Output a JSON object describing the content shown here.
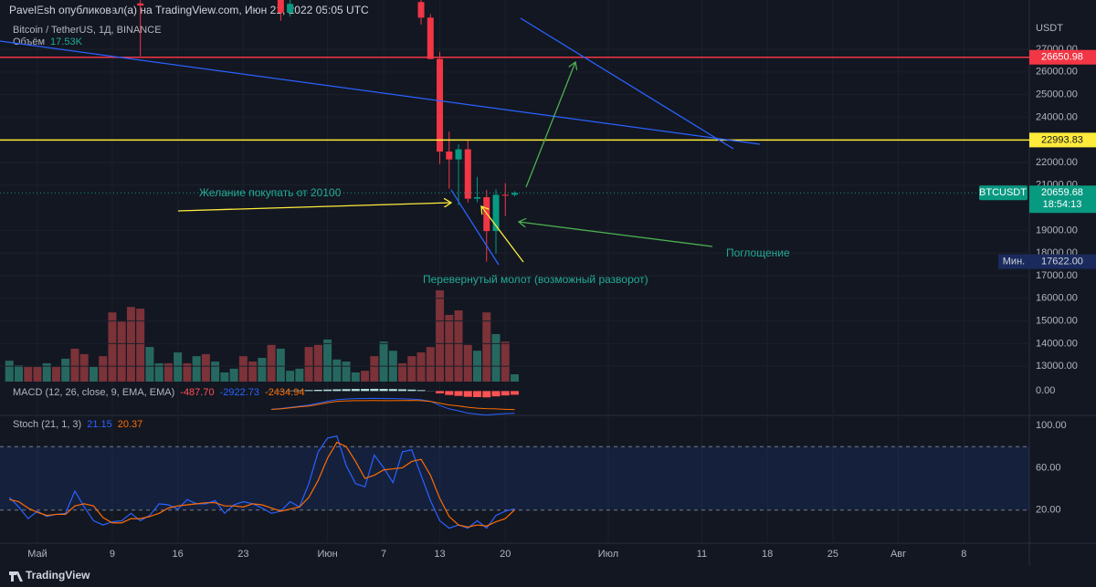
{
  "header": {
    "text": "PavelEsh опубликовал(а) на TradingView.com, Июн 21, 2022 05:05 UTC"
  },
  "footer": {
    "brand": "TradingView"
  },
  "chart_data": [
    {
      "type": "candlestick",
      "title": "Bitcoin / TetherUS, 1Д, BINANCE",
      "symbol": "BTCUSDT",
      "unit": "USDT",
      "countdown": "18:54:13",
      "x": [
        "2022-05-12",
        "2022-05-27",
        "2022-05-28",
        "2022-06-11",
        "2022-06-12",
        "2022-06-13",
        "2022-06-14",
        "2022-06-15",
        "2022-06-16",
        "2022-06-17",
        "2022-06-18",
        "2022-06-19",
        "2022-06-20",
        "2022-06-21"
      ],
      "open": [
        29030,
        29190,
        28620,
        29090,
        28400,
        26574,
        22485,
        22136,
        22584,
        20401,
        20468,
        18971,
        20574,
        20573
      ],
      "high": [
        30032,
        29380,
        29250,
        29420,
        28550,
        26895,
        23363,
        22800,
        22973,
        21365,
        20792,
        20815,
        21090,
        20730
      ],
      "low": [
        26700,
        28260,
        28450,
        28100,
        26560,
        21925,
        20846,
        20111,
        20232,
        20246,
        17622,
        17960,
        19637,
        20500
      ],
      "close": [
        28936,
        28620,
        29010,
        28400,
        26574,
        22485,
        22136,
        22584,
        20401,
        20468,
        18971,
        20574,
        20573,
        20659.68
      ],
      "up_color": "#089981",
      "down_color": "#f23645",
      "xlim": [
        "2022-04-27",
        "2022-08-15"
      ],
      "xticks": [
        {
          "value": "2022-05-01",
          "label": "Май"
        },
        {
          "value": "2022-05-09",
          "label": "9"
        },
        {
          "value": "2022-05-16",
          "label": "16"
        },
        {
          "value": "2022-05-23",
          "label": "23"
        },
        {
          "value": "2022-06-01",
          "label": "Июн"
        },
        {
          "value": "2022-06-07",
          "label": "7"
        },
        {
          "value": "2022-06-13",
          "label": "13"
        },
        {
          "value": "2022-06-20",
          "label": "20"
        },
        {
          "value": "2022-07-01",
          "label": "Июл"
        },
        {
          "value": "2022-07-11",
          "label": "11"
        },
        {
          "value": "2022-07-18",
          "label": "18"
        },
        {
          "value": "2022-07-25",
          "label": "25"
        },
        {
          "value": "2022-08-01",
          "label": "Авг"
        },
        {
          "value": "2022-08-08",
          "label": "8"
        }
      ],
      "ylim": [
        12240,
        29180
      ],
      "yticks": [
        {
          "value": 13000,
          "label": "13000.00"
        },
        {
          "value": 14000,
          "label": "14000.00"
        },
        {
          "value": 15000,
          "label": "15000.00"
        },
        {
          "value": 16000,
          "label": "16000.00"
        },
        {
          "value": 17000,
          "label": "17000.00"
        },
        {
          "value": 18000,
          "label": "18000.00"
        },
        {
          "value": 19000,
          "label": "19000.00"
        },
        {
          "value": 21000,
          "label": "21000.00"
        },
        {
          "value": 22000,
          "label": "22000.00"
        },
        {
          "value": 23000,
          "label": "23000.00"
        },
        {
          "value": 24000,
          "label": "24000.00"
        },
        {
          "value": 25000,
          "label": "25000.00"
        },
        {
          "value": 26000,
          "label": "26000.00"
        },
        {
          "value": 27000,
          "label": "27000.00"
        }
      ],
      "grid": true,
      "lines": [
        {
          "value": 26650.98,
          "color": "#f23645"
        },
        {
          "value": 22993.83,
          "color": "#ffeb3b"
        }
      ],
      "min_marker": {
        "name": "Мин.",
        "value": 17622,
        "label": "17622.00"
      },
      "annotations": [
        {
          "text": "Желание покупать от 20100"
        },
        {
          "text": "Перевернутый молот (возможный разворот)"
        },
        {
          "text": "Поглощение"
        }
      ]
    },
    {
      "type": "bar",
      "name": "Объём",
      "x": [
        "2022-04-28",
        "2022-04-29",
        "2022-04-30",
        "2022-05-01",
        "2022-05-02",
        "2022-05-03",
        "2022-05-04",
        "2022-05-05",
        "2022-05-06",
        "2022-05-07",
        "2022-05-08",
        "2022-05-09",
        "2022-05-10",
        "2022-05-11",
        "2022-05-12",
        "2022-05-13",
        "2022-05-14",
        "2022-05-15",
        "2022-05-16",
        "2022-05-17",
        "2022-05-18",
        "2022-05-19",
        "2022-05-20",
        "2022-05-21",
        "2022-05-22",
        "2022-05-23",
        "2022-05-24",
        "2022-05-25",
        "2022-05-26",
        "2022-05-27",
        "2022-05-28",
        "2022-05-29",
        "2022-05-30",
        "2022-05-31",
        "2022-06-01",
        "2022-06-02",
        "2022-06-03",
        "2022-06-04",
        "2022-06-05",
        "2022-06-06",
        "2022-06-07",
        "2022-06-08",
        "2022-06-09",
        "2022-06-10",
        "2022-06-11",
        "2022-06-12",
        "2022-06-13",
        "2022-06-14",
        "2022-06-15",
        "2022-06-16",
        "2022-06-17",
        "2022-06-18",
        "2022-06-19",
        "2022-06-20",
        "2022-06-21"
      ],
      "values": [
        50,
        39,
        35,
        35,
        44,
        35,
        55,
        79,
        66,
        35,
        61,
        166,
        144,
        179,
        175,
        83,
        44,
        44,
        70,
        44,
        61,
        66,
        48,
        22,
        31,
        61,
        48,
        57,
        88,
        79,
        26,
        31,
        83,
        88,
        101,
        53,
        48,
        22,
        26,
        61,
        96,
        74,
        44,
        61,
        70,
        83,
        219,
        160,
        171,
        88,
        74,
        166,
        114,
        96,
        17.53
      ],
      "value_labels": [
        null,
        null,
        null,
        null,
        null,
        null,
        null,
        null,
        null,
        null,
        null,
        null,
        null,
        null,
        null,
        null,
        null,
        null,
        null,
        null,
        null,
        null,
        null,
        null,
        null,
        null,
        null,
        null,
        null,
        null,
        null,
        null,
        null,
        null,
        null,
        null,
        null,
        null,
        null,
        null,
        null,
        null,
        null,
        null,
        null,
        null,
        null,
        null,
        null,
        null,
        null,
        null,
        null,
        null,
        "17.53K"
      ],
      "colors": [
        "#26685f",
        "#26685f",
        "#7b3238",
        "#7b3238",
        "#26685f",
        "#7b3238",
        "#26685f",
        "#7b3238",
        "#7b3238",
        "#26685f",
        "#7b3238",
        "#7b3238",
        "#7b3238",
        "#7b3238",
        "#7b3238",
        "#26685f",
        "#26685f",
        "#7b3238",
        "#26685f",
        "#7b3238",
        "#26685f",
        "#7b3238",
        "#26685f",
        "#26685f",
        "#26685f",
        "#7b3238",
        "#7b3238",
        "#26685f",
        "#7b3238",
        "#26685f",
        "#26685f",
        "#26685f",
        "#7b3238",
        "#7b3238",
        "#26685f",
        "#26685f",
        "#26685f",
        "#26685f",
        "#7b3238",
        "#7b3238",
        "#26685f",
        "#26685f",
        "#7b3238",
        "#7b3238",
        "#7b3238",
        "#7b3238",
        "#7b3238",
        "#7b3238",
        "#7b3238",
        "#7b3238",
        "#26685f",
        "#7b3238",
        "#26685f",
        "#7b3238",
        "#26685f"
      ],
      "name_color": "#22ab94",
      "ylim": [
        0,
        230
      ]
    },
    {
      "type": "macd",
      "title": "MACD (12, 26, close, 9, EMA, EMA)",
      "x": [
        "2022-05-26",
        "2022-05-27",
        "2022-05-28",
        "2022-05-29",
        "2022-05-30",
        "2022-05-31",
        "2022-06-01",
        "2022-06-02",
        "2022-06-03",
        "2022-06-04",
        "2022-06-05",
        "2022-06-06",
        "2022-06-07",
        "2022-06-08",
        "2022-06-09",
        "2022-06-10",
        "2022-06-11",
        "2022-06-12",
        "2022-06-13",
        "2022-06-14",
        "2022-06-15",
        "2022-06-16",
        "2022-06-17",
        "2022-06-18",
        "2022-06-19",
        "2022-06-20",
        "2022-06-21"
      ],
      "histogram": [
        20,
        40,
        60,
        80,
        120,
        160,
        190,
        220,
        250,
        270,
        280,
        290,
        280,
        260,
        230,
        190,
        120,
        20,
        -300,
        -520,
        -640,
        -760,
        -800,
        -830,
        -700,
        -580,
        -487.7
      ],
      "histogram_labels": [
        null,
        null,
        null,
        null,
        null,
        null,
        null,
        null,
        null,
        null,
        null,
        null,
        null,
        null,
        null,
        null,
        null,
        null,
        null,
        null,
        null,
        null,
        null,
        null,
        null,
        null,
        "-487.70"
      ],
      "up_color": "#b2dfdb",
      "down_color": "#ff5252",
      "series": [
        {
          "color": "#2962ff",
          "values": [
            -2400,
            -2300,
            -2150,
            -2000,
            -1850,
            -1600,
            -1350,
            -1150,
            -1050,
            -1000,
            -980,
            -960,
            -980,
            -1000,
            -1020,
            -1050,
            -1150,
            -1350,
            -1900,
            -2350,
            -2600,
            -2900,
            -3050,
            -3150,
            -3050,
            -2980,
            -2922.73
          ]
        },
        {
          "color": "#ff6d00",
          "values": [
            -2420,
            -2340,
            -2210,
            -2080,
            -1970,
            -1760,
            -1540,
            -1370,
            -1300,
            -1270,
            -1260,
            -1250,
            -1260,
            -1260,
            -1250,
            -1240,
            -1270,
            -1370,
            -1600,
            -1830,
            -1960,
            -2140,
            -2250,
            -2320,
            -2350,
            -2400,
            -2434.94
          ]
        }
      ],
      "ylim": [
        -3200,
        1000
      ],
      "yticks": [
        {
          "value": 0,
          "label": "0.00"
        }
      ]
    },
    {
      "type": "line",
      "title": "Stoch (21, 1, 3)",
      "x": [
        "2022-04-28",
        "2022-04-29",
        "2022-04-30",
        "2022-05-01",
        "2022-05-02",
        "2022-05-03",
        "2022-05-04",
        "2022-05-05",
        "2022-05-06",
        "2022-05-07",
        "2022-05-08",
        "2022-05-09",
        "2022-05-10",
        "2022-05-11",
        "2022-05-12",
        "2022-05-13",
        "2022-05-14",
        "2022-05-15",
        "2022-05-16",
        "2022-05-17",
        "2022-05-18",
        "2022-05-19",
        "2022-05-20",
        "2022-05-21",
        "2022-05-22",
        "2022-05-23",
        "2022-05-24",
        "2022-05-25",
        "2022-05-26",
        "2022-05-27",
        "2022-05-28",
        "2022-05-29",
        "2022-05-30",
        "2022-05-31",
        "2022-06-01",
        "2022-06-02",
        "2022-06-03",
        "2022-06-04",
        "2022-06-05",
        "2022-06-06",
        "2022-06-07",
        "2022-06-08",
        "2022-06-09",
        "2022-06-10",
        "2022-06-11",
        "2022-06-12",
        "2022-06-13",
        "2022-06-14",
        "2022-06-15",
        "2022-06-16",
        "2022-06-17",
        "2022-06-18",
        "2022-06-19",
        "2022-06-20",
        "2022-06-21"
      ],
      "series": [
        {
          "color": "#2962ff",
          "values": [
            32,
            23,
            12,
            19,
            14,
            16,
            17,
            38,
            23,
            10,
            6,
            9,
            10,
            17,
            10,
            15,
            26,
            25,
            21,
            30,
            26,
            26,
            29,
            17,
            25,
            28,
            26,
            22,
            17,
            19,
            28,
            23,
            45,
            75,
            88,
            90,
            62,
            45,
            42,
            72,
            60,
            46,
            75,
            77,
            53,
            29,
            10,
            3,
            6,
            3,
            10,
            3,
            15,
            19,
            21.15
          ]
        },
        {
          "color": "#ff6d00",
          "values": [
            30,
            28,
            22,
            18,
            15,
            16,
            16,
            24,
            26,
            24,
            13,
            8,
            8,
            12,
            12,
            14,
            17,
            22,
            24,
            25,
            26,
            27,
            27,
            24,
            24,
            23,
            26,
            25,
            22,
            19,
            21,
            23,
            32,
            48,
            69,
            84,
            80,
            66,
            50,
            53,
            58,
            59,
            60,
            66,
            68,
            53,
            31,
            14,
            6,
            4,
            6,
            5,
            9,
            12,
            20.37
          ]
        }
      ],
      "ylim": [
        -11.2,
        109.5
      ],
      "yticks": [
        {
          "value": 20,
          "label": "20.00"
        },
        {
          "value": 60,
          "label": "60.00"
        },
        {
          "value": 100,
          "label": "100.00"
        }
      ],
      "band": [
        20,
        80
      ]
    }
  ]
}
